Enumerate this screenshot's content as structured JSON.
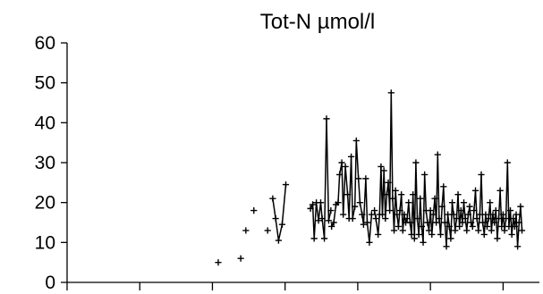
{
  "chart_data": {
    "type": "line",
    "title": "Tot-N  µmol/l",
    "xlabel": "",
    "ylabel": "",
    "ylim": [
      0,
      60
    ],
    "xlim": [
      0,
      65
    ],
    "y_ticks": [
      0,
      10,
      20,
      30,
      40,
      50,
      60
    ],
    "y_tick_labels": [
      "0",
      "10",
      "20",
      "30",
      "40",
      "50",
      "60"
    ],
    "x_ticks": [
      0,
      10,
      20,
      30,
      40,
      50,
      60
    ],
    "x_tick_labels": [],
    "grid": false,
    "legend": "none",
    "marker": "plus",
    "color": "#000000",
    "series": [
      {
        "segments": [
          [
            [
              20.8,
              5
            ]
          ],
          [
            [
              23.9,
              6
            ]
          ],
          [
            [
              24.6,
              13
            ]
          ],
          [
            [
              25.7,
              18
            ]
          ],
          [
            [
              27.6,
              13
            ]
          ],
          [
            [
              28.3,
              21
            ],
            [
              28.7,
              16
            ],
            [
              29.1,
              10.5
            ],
            [
              29.6,
              14.5
            ],
            [
              30.1,
              24.5
            ]
          ],
          [
            [
              33.5,
              18.5
            ],
            [
              33.8,
              19.5
            ],
            [
              34.0,
              11
            ],
            [
              34.3,
              20
            ],
            [
              34.6,
              15.5
            ],
            [
              34.9,
              20
            ],
            [
              35.1,
              16
            ],
            [
              35.4,
              11
            ],
            [
              35.7,
              41
            ],
            [
              36.0,
              15.5
            ],
            [
              36.3,
              18
            ]
          ],
          [
            [
              36.4,
              14
            ],
            [
              36.7,
              15
            ],
            [
              37.0,
              19.5
            ],
            [
              37.3,
              20
            ],
            [
              37.5,
              27
            ],
            [
              37.8,
              30
            ],
            [
              38.0,
              17
            ],
            [
              38.3,
              29
            ],
            [
              38.6,
              22
            ],
            [
              38.8,
              16
            ],
            [
              39.1,
              31.5
            ],
            [
              39.3,
              16
            ],
            [
              39.6,
              19
            ],
            [
              39.8,
              35.5
            ],
            [
              40.1,
              26
            ],
            [
              40.3,
              20
            ],
            [
              40.6,
              17
            ],
            [
              40.8,
              14.5
            ],
            [
              41.1,
              26
            ],
            [
              41.3,
              15
            ],
            [
              41.6,
              10
            ],
            [
              41.9,
              17
            ]
          ],
          [
            [
              42.3,
              18
            ],
            [
              42.5,
              16
            ],
            [
              42.8,
              12
            ],
            [
              43.0,
              17
            ],
            [
              43.2,
              29
            ],
            [
              43.4,
              17
            ],
            [
              43.6,
              28
            ],
            [
              43.8,
              16
            ],
            [
              44.0,
              22
            ],
            [
              44.2,
              25
            ],
            [
              44.4,
              18
            ],
            [
              44.6,
              47.5
            ],
            [
              44.8,
              21
            ],
            [
              45.0,
              13
            ],
            [
              45.2,
              23
            ],
            [
              45.4,
              17
            ],
            [
              45.6,
              14
            ],
            [
              45.8,
              18
            ],
            [
              46.0,
              22
            ],
            [
              46.2,
              13
            ],
            [
              46.4,
              17
            ],
            [
              46.6,
              15
            ],
            [
              46.8,
              16
            ],
            [
              47.0,
              20
            ],
            [
              47.2,
              15
            ],
            [
              47.4,
              12
            ],
            [
              47.6,
              22
            ],
            [
              47.8,
              11
            ],
            [
              48.0,
              30
            ],
            [
              48.2,
              16
            ],
            [
              48.4,
              12
            ],
            [
              48.6,
              21
            ],
            [
              48.8,
              14
            ],
            [
              49.0,
              10
            ],
            [
              49.2,
              27
            ],
            [
              49.4,
              18
            ],
            [
              49.6,
              15
            ],
            [
              49.8,
              13
            ],
            [
              50.0,
              18
            ],
            [
              50.2,
              12
            ],
            [
              50.4,
              17
            ],
            [
              50.6,
              21
            ],
            [
              50.8,
              15
            ],
            [
              51.0,
              32
            ],
            [
              51.2,
              16
            ],
            [
              51.4,
              12
            ],
            [
              51.6,
              19
            ],
            [
              51.8,
              24
            ],
            [
              52.0,
              15
            ],
            [
              52.2,
              9
            ],
            [
              52.4,
              17
            ],
            [
              52.6,
              14
            ],
            [
              52.8,
              11
            ],
            [
              53.0,
              20
            ],
            [
              53.2,
              17
            ],
            [
              53.4,
              13
            ],
            [
              53.6,
              16
            ],
            [
              53.8,
              22
            ],
            [
              54.0,
              14
            ],
            [
              54.2,
              18
            ],
            [
              54.4,
              15
            ],
            [
              54.6,
              20
            ],
            [
              54.8,
              16
            ],
            [
              55.0,
              13
            ],
            [
              55.2,
              17
            ],
            [
              55.4,
              19
            ],
            [
              55.6,
              15
            ],
            [
              55.8,
              14
            ],
            [
              56.0,
              18
            ],
            [
              56.2,
              23
            ],
            [
              56.4,
              16
            ],
            [
              56.6,
              13
            ],
            [
              56.8,
              17
            ],
            [
              57.0,
              27
            ],
            [
              57.2,
              15
            ],
            [
              57.4,
              12
            ],
            [
              57.6,
              17
            ],
            [
              57.8,
              14
            ],
            [
              58.0,
              16
            ],
            [
              58.2,
              20
            ],
            [
              58.4,
              13
            ],
            [
              58.6,
              17
            ],
            [
              58.8,
              15
            ],
            [
              59.0,
              18
            ],
            [
              59.2,
              11
            ],
            [
              59.4,
              16
            ],
            [
              59.6,
              23
            ],
            [
              59.8,
              14
            ],
            [
              60.0,
              17
            ],
            [
              60.2,
              13
            ],
            [
              60.4,
              16
            ],
            [
              60.6,
              30
            ],
            [
              60.8,
              14
            ],
            [
              61.0,
              18
            ],
            [
              61.2,
              12
            ],
            [
              61.4,
              16
            ],
            [
              61.6,
              14
            ],
            [
              61.8,
              17
            ],
            [
              62.0,
              9
            ],
            [
              62.2,
              15
            ],
            [
              62.4,
              19
            ],
            [
              62.6,
              13
            ]
          ]
        ]
      }
    ]
  }
}
